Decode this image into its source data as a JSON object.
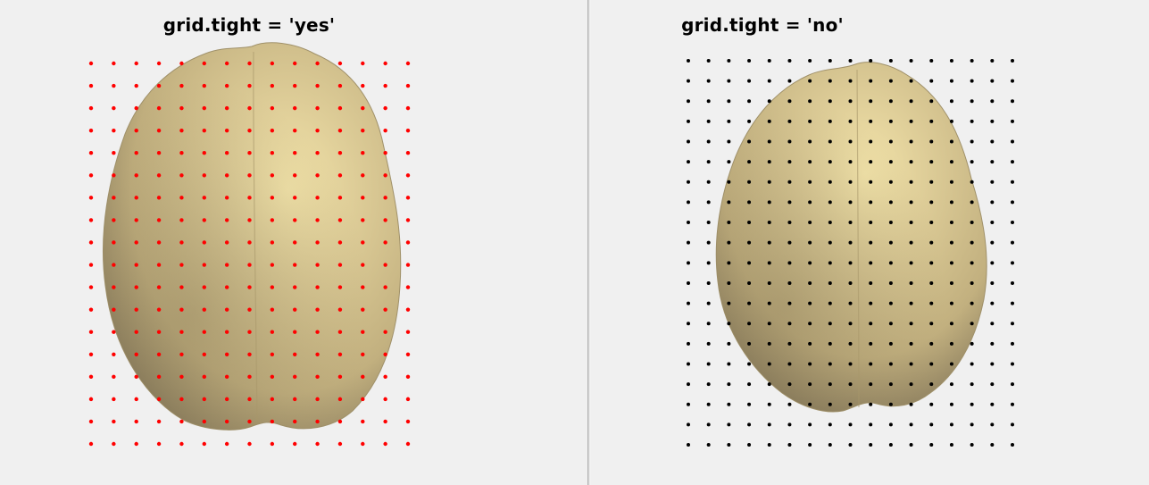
{
  "panels": [
    {
      "title": "grid.tight = 'yes'",
      "dot_color": "#ff0000",
      "grid": {
        "columns": 15,
        "rows": 18
      }
    },
    {
      "title": "grid.tight = 'no'",
      "dot_color": "#000000",
      "grid": {
        "columns": 17,
        "rows": 20
      }
    }
  ],
  "colors": {
    "background": "#f0f0f0",
    "brain_base": "#c9b88a",
    "brain_highlight": "#f3e4aa",
    "brain_shadow": "#8a7c58"
  }
}
